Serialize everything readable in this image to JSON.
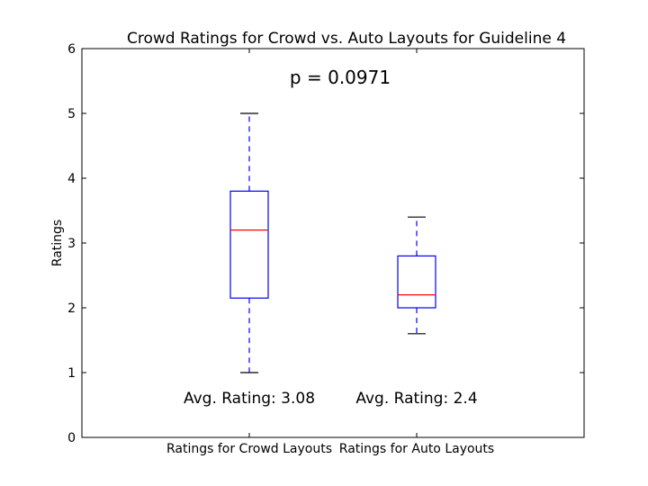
{
  "chart_data": {
    "type": "box",
    "title": "Crowd Ratings for Crowd vs. Auto Layouts for Guideline 4",
    "ylabel": "Ratings",
    "xlabel": "",
    "ylim": [
      0,
      6
    ],
    "yticks": [
      0,
      1,
      2,
      3,
      4,
      5,
      6
    ],
    "annotation": "p = 0.0971",
    "boxes": [
      {
        "name": "Ratings for Crowd Layouts",
        "whisker_low": 1.0,
        "q1": 2.15,
        "median": 3.2,
        "q3": 3.8,
        "whisker_high": 5.0,
        "avg_label": "Avg. Rating: 3.08"
      },
      {
        "name": "Ratings for Auto Layouts",
        "whisker_low": 1.6,
        "q1": 2.0,
        "median": 2.2,
        "q3": 2.8,
        "whisker_high": 3.4,
        "avg_label": "Avg. Rating: 2.4"
      }
    ],
    "colors": {
      "box": "#0000ff",
      "median": "#ff0000",
      "whisker": "#0000ff",
      "cap": "#000000"
    }
  }
}
